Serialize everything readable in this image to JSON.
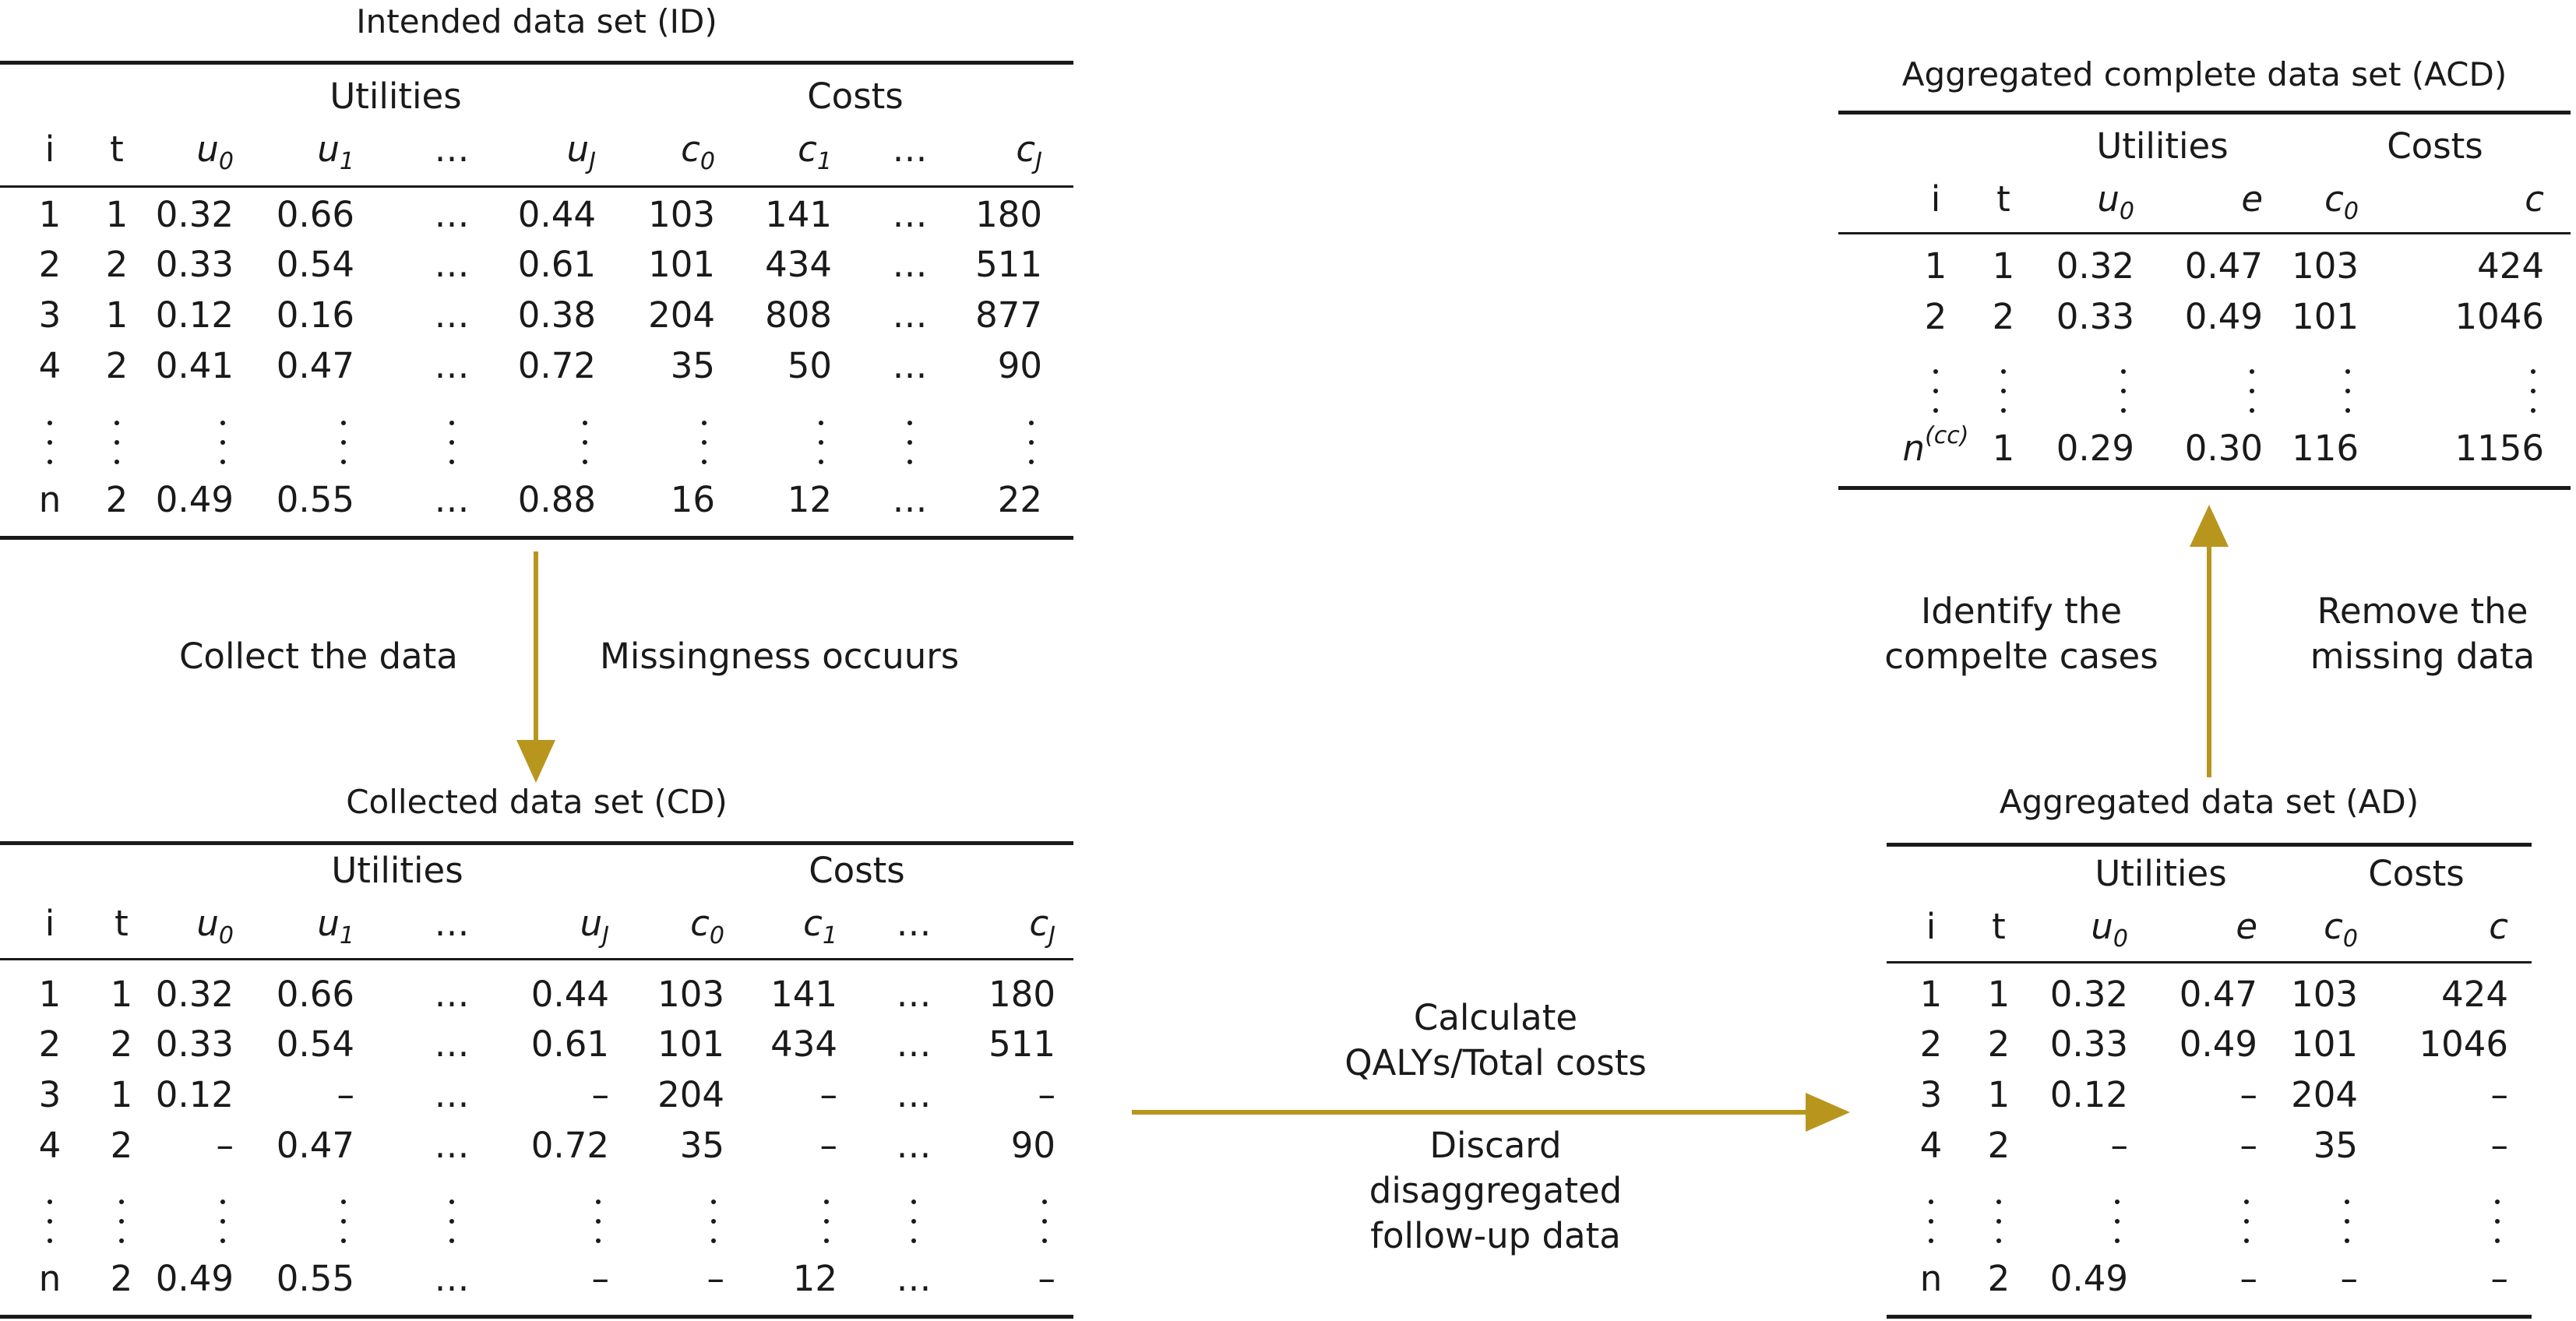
{
  "colors": {
    "arrow": "#b8961e",
    "text": "#1a1a1a"
  },
  "tables": [
    {
      "id": "id",
      "title": "Intended data set (ID)",
      "groups": {
        "utilities": "Utilities",
        "costs": "Costs"
      },
      "headers": [
        {
          "b": "u",
          "s": "0"
        },
        {
          "b": "u",
          "s": "1"
        },
        {
          "b": "…",
          "s": ""
        },
        {
          "b": "u",
          "s": "J"
        },
        {
          "b": "c",
          "s": "0"
        },
        {
          "b": "c",
          "s": "1"
        },
        {
          "b": "…",
          "s": ""
        },
        {
          "b": "c",
          "s": "J"
        }
      ],
      "rows": [
        [
          "1",
          "1",
          "0.32",
          "0.66",
          "…",
          "0.44",
          "103",
          "141",
          "…",
          "180"
        ],
        [
          "2",
          "2",
          "0.33",
          "0.54",
          "…",
          "0.61",
          "101",
          "434",
          "…",
          "511"
        ],
        [
          "3",
          "1",
          "0.12",
          "0.16",
          "…",
          "0.38",
          "204",
          "808",
          "…",
          "877"
        ],
        [
          "4",
          "2",
          "0.41",
          "0.47",
          "…",
          "0.72",
          "35",
          "50",
          "…",
          "90"
        ]
      ],
      "last_row": [
        "n",
        "2",
        "0.49",
        "0.55",
        "…",
        "0.88",
        "16",
        "12",
        "…",
        "22"
      ]
    },
    {
      "id": "cd",
      "title": "Collected data set (CD)",
      "groups": {
        "utilities": "Utilities",
        "costs": "Costs"
      },
      "headers": [
        {
          "b": "u",
          "s": "0"
        },
        {
          "b": "u",
          "s": "1"
        },
        {
          "b": "…",
          "s": ""
        },
        {
          "b": "u",
          "s": "J"
        },
        {
          "b": "c",
          "s": "0"
        },
        {
          "b": "c",
          "s": "1"
        },
        {
          "b": "…",
          "s": ""
        },
        {
          "b": "c",
          "s": "J"
        }
      ],
      "rows": [
        [
          "1",
          "1",
          "0.32",
          "0.66",
          "…",
          "0.44",
          "103",
          "141",
          "…",
          "180"
        ],
        [
          "2",
          "2",
          "0.33",
          "0.54",
          "…",
          "0.61",
          "101",
          "434",
          "…",
          "511"
        ],
        [
          "3",
          "1",
          "0.12",
          "–",
          "…",
          "–",
          "204",
          "–",
          "…",
          "–"
        ],
        [
          "4",
          "2",
          "–",
          "0.47",
          "…",
          "0.72",
          "35",
          "–",
          "…",
          "90"
        ]
      ],
      "last_row": [
        "n",
        "2",
        "0.49",
        "0.55",
        "…",
        "–",
        "–",
        "12",
        "…",
        "–"
      ]
    },
    {
      "id": "acd",
      "title": "Aggregated complete data set (ACD)",
      "groups": {
        "utilities": "Utilities",
        "costs": "Costs"
      },
      "headers": [
        {
          "b": "u",
          "s": "0"
        },
        {
          "b": "e",
          "s": ""
        },
        {
          "b": "c",
          "s": "0"
        },
        {
          "b": "c",
          "s": ""
        }
      ],
      "rows": [
        [
          "1",
          "1",
          "0.32",
          "0.47",
          "103",
          "424"
        ],
        [
          "2",
          "2",
          "0.33",
          "0.49",
          "101",
          "1046"
        ]
      ],
      "last_row_sup": "(cc)",
      "last_row": [
        "n",
        "1",
        "0.29",
        "0.30",
        "116",
        "1156"
      ]
    },
    {
      "id": "ad",
      "title": "Aggregated data set (AD)",
      "groups": {
        "utilities": "Utilities",
        "costs": "Costs"
      },
      "headers": [
        {
          "b": "u",
          "s": "0"
        },
        {
          "b": "e",
          "s": ""
        },
        {
          "b": "c",
          "s": "0"
        },
        {
          "b": "c",
          "s": ""
        }
      ],
      "rows": [
        [
          "1",
          "1",
          "0.32",
          "0.47",
          "103",
          "424"
        ],
        [
          "2",
          "2",
          "0.33",
          "0.49",
          "101",
          "1046"
        ],
        [
          "3",
          "1",
          "0.12",
          "–",
          "204",
          "–"
        ],
        [
          "4",
          "2",
          "–",
          "–",
          "35",
          "–"
        ]
      ],
      "last_row": [
        "n",
        "2",
        "0.49",
        "–",
        "–",
        "–"
      ]
    }
  ],
  "headers_it": {
    "i": "i",
    "t": "t"
  },
  "labels": {
    "collect": "Collect the data",
    "missing": "Missingness occuurs",
    "calc_1": "Calculate",
    "calc_2": "QALYs/Total costs",
    "discard_1": "Discard",
    "discard_2": "disaggregated",
    "discard_3": "follow-up data",
    "identify_1": "Identify the",
    "identify_2": "compelte cases",
    "remove_1": "Remove the",
    "remove_2": "missing data"
  }
}
